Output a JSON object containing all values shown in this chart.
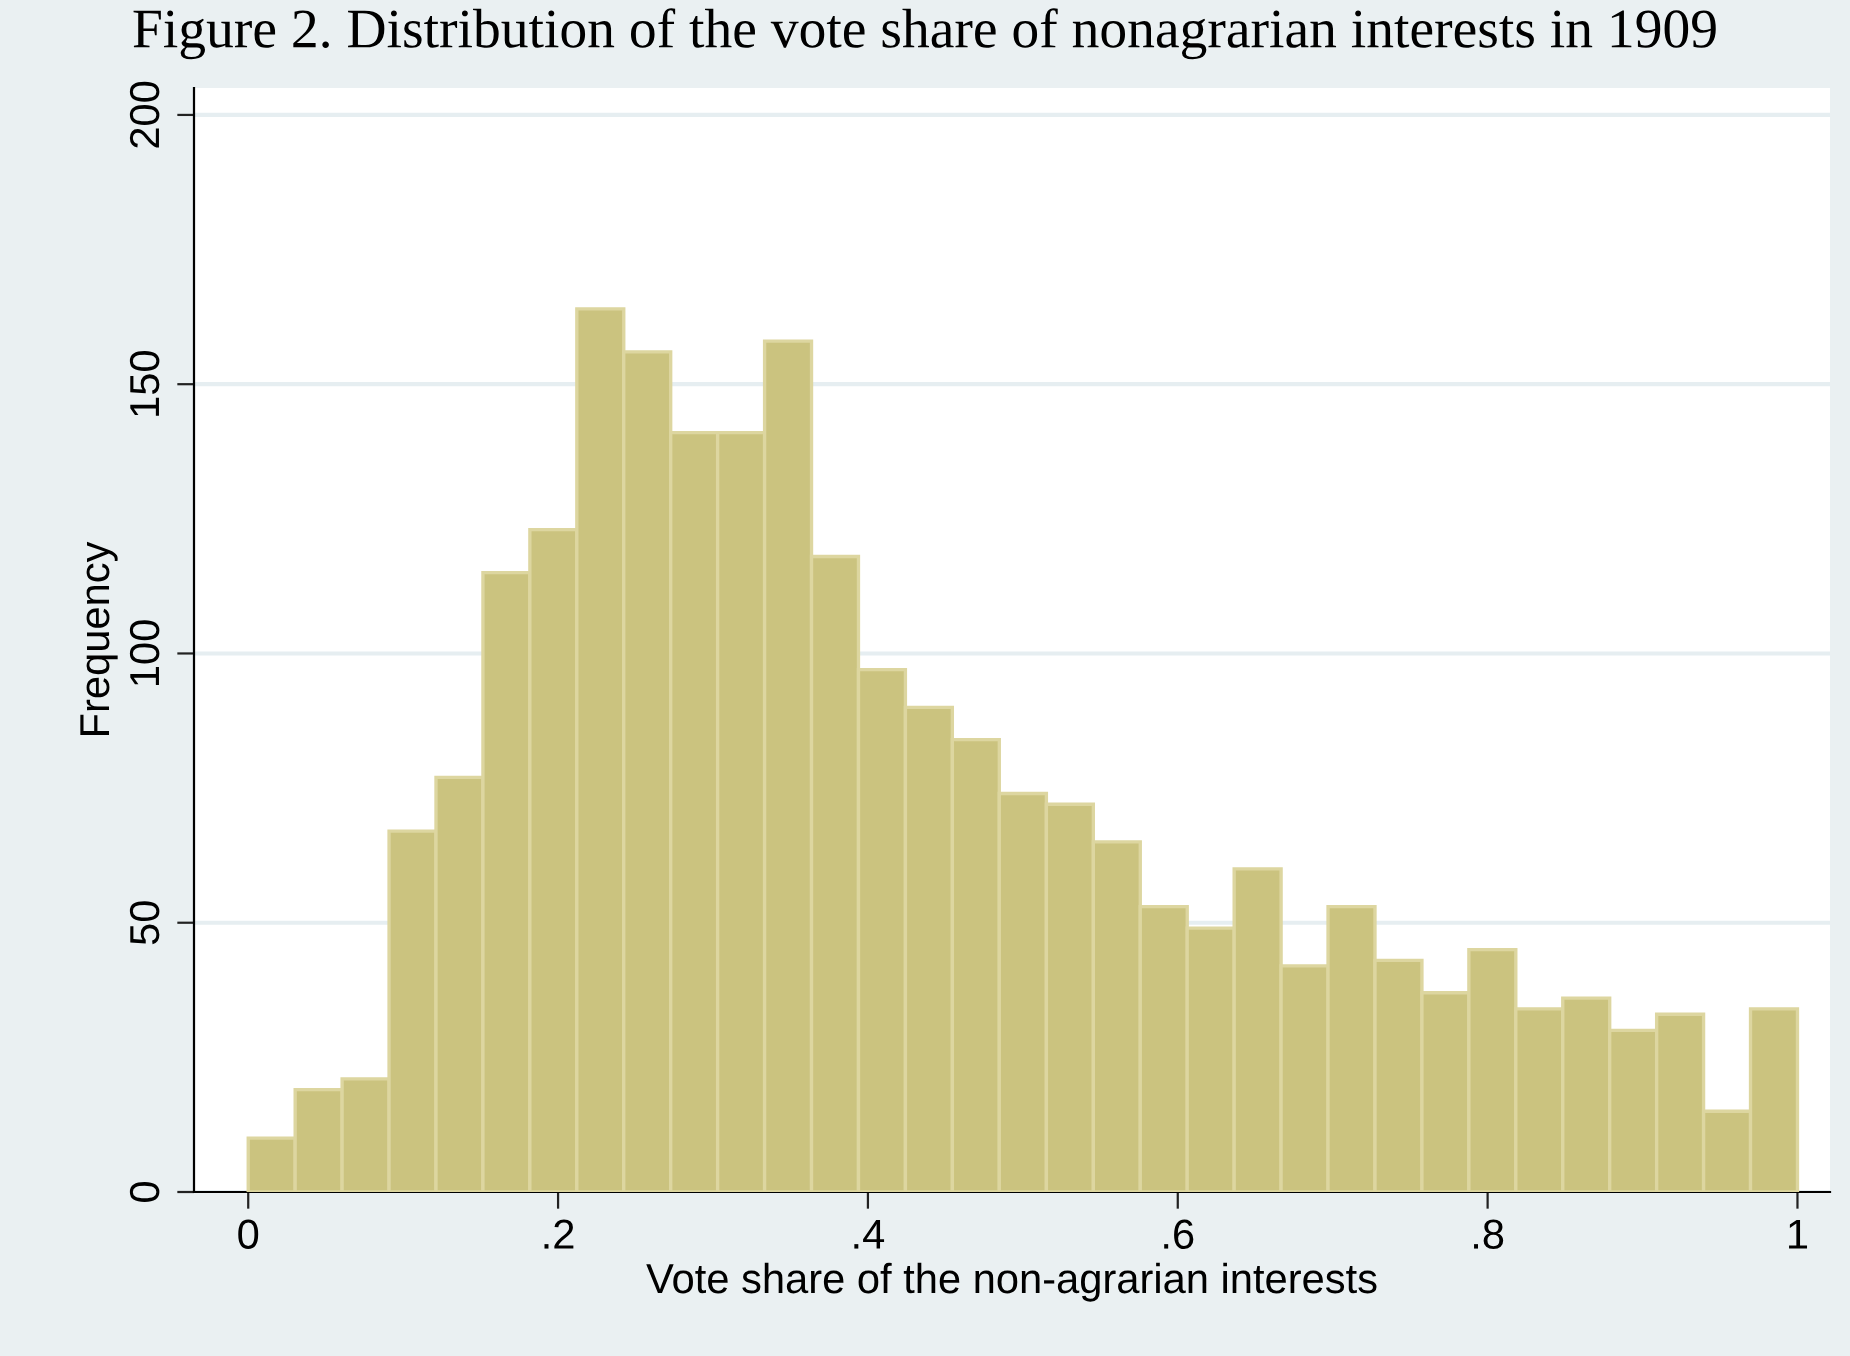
{
  "chart_data": {
    "type": "histogram",
    "title": "Figure 2. Distribution of the vote share of nonagrarian interests in 1909",
    "xlabel": "Vote share of the non-agrarian interests",
    "ylabel": "Frequency",
    "bins": [
      0,
      0.0303,
      0.0606,
      0.0909,
      0.1212,
      0.1515,
      0.1818,
      0.2121,
      0.2424,
      0.2727,
      0.303,
      0.3333,
      0.3636,
      0.3939,
      0.4242,
      0.4545,
      0.4848,
      0.5152,
      0.5455,
      0.5758,
      0.6061,
      0.6364,
      0.6667,
      0.697,
      0.7273,
      0.7576,
      0.7879,
      0.8182,
      0.8485,
      0.8788,
      0.9091,
      0.9394,
      0.9697,
      1
    ],
    "values": [
      10,
      19,
      21,
      67,
      77,
      115,
      123,
      164,
      156,
      141,
      141,
      158,
      118,
      97,
      90,
      84,
      74,
      72,
      65,
      53,
      49,
      60,
      42,
      53,
      43,
      37,
      45,
      34,
      36,
      30,
      33,
      15,
      34
    ],
    "color": "#cbc37f",
    "xlim": [
      -0.035,
      1.021
    ],
    "ylim": [
      0,
      205
    ],
    "xticks": [
      0,
      {
        "value": 0.2,
        "label": ".2"
      },
      {
        "value": 0.4,
        "label": ".4"
      },
      {
        "value": 0.6,
        "label": ".6"
      },
      {
        "value": 0.8,
        "label": ".8"
      },
      1
    ],
    "yticks": [
      0,
      50,
      100,
      150,
      200
    ],
    "grid": "y"
  }
}
